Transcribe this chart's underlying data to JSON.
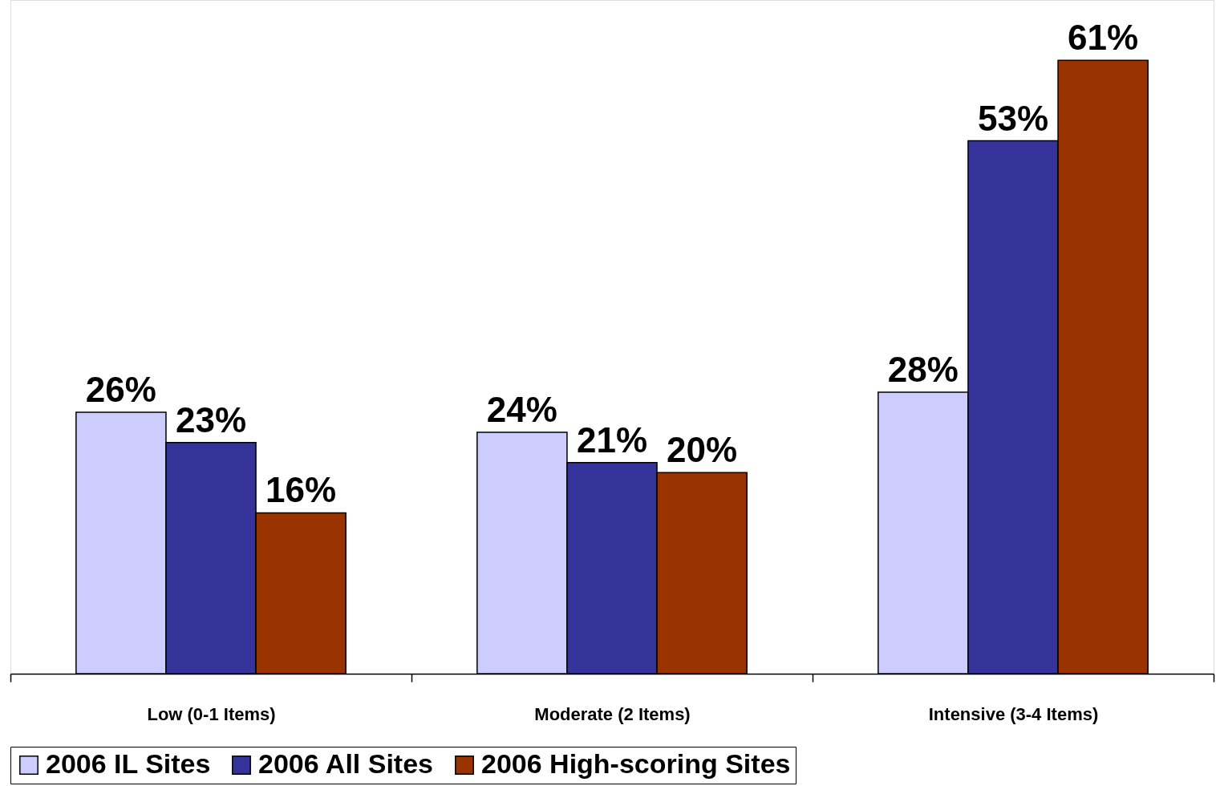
{
  "chart_data": {
    "type": "bar",
    "categories": [
      "Low (0-1 Items)",
      "Moderate (2 Items)",
      "Intensive (3-4 Items)"
    ],
    "series": [
      {
        "name": "2006 IL Sites",
        "color": "#ccccff",
        "values": [
          26,
          24,
          28
        ],
        "value_labels": [
          "26%",
          "24%",
          "28%"
        ]
      },
      {
        "name": "2006 All Sites",
        "color": "#333399",
        "values": [
          23,
          21,
          53
        ],
        "value_labels": [
          "23%",
          "21%",
          "53%"
        ]
      },
      {
        "name": "2006 High-scoring Sites",
        "color": "#993300",
        "values": [
          16,
          20,
          61
        ],
        "value_labels": [
          "16%",
          "20%",
          "61%"
        ]
      }
    ],
    "ylim": [
      0,
      67
    ],
    "tick_labels": "x",
    "grid": false,
    "legend": "bottom"
  }
}
